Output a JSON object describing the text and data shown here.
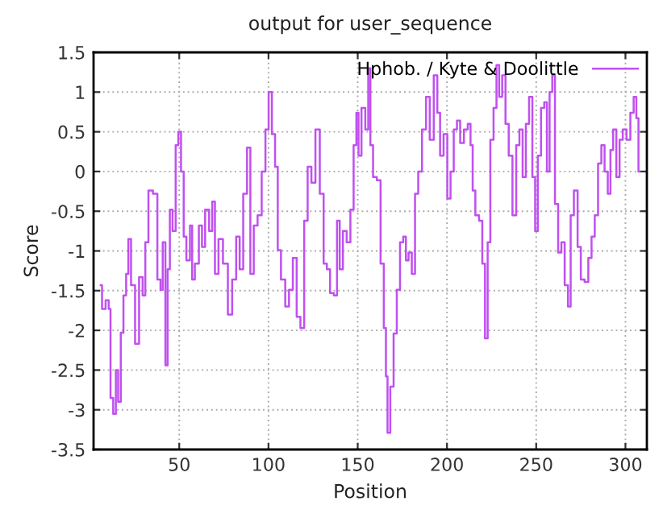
{
  "chart_data": {
    "type": "step",
    "title": "output for user_sequence",
    "xlabel": "Position",
    "ylabel": "Score",
    "x": [
      6,
      7.5,
      10,
      11,
      12,
      14,
      15,
      16.5,
      18,
      19.5,
      21,
      22,
      24,
      26.5,
      28.5,
      30.5,
      31.5,
      34,
      36.5,
      39,
      40,
      41.5,
      43,
      44,
      45.5,
      47,
      49,
      50,
      52,
      53,
      55,
      57,
      57.5,
      60,
      62,
      63.5,
      65.5,
      68,
      69,
      71,
      73,
      76,
      78.5,
      80.8,
      83,
      84.7,
      87,
      89,
      90.7,
      92.8,
      95,
      97.4,
      99.2,
      101,
      102.8,
      104.6,
      105.8,
      108.2,
      110.6,
      112.4,
      114.9,
      116.7,
      119.1,
      120.9,
      123,
      125.1,
      127.5,
      130,
      131.8,
      133.6,
      135.4,
      137.8,
      139,
      140.8,
      142.6,
      145,
      146.8,
      148.6,
      149.9,
      151,
      153.2,
      155.3,
      156.5,
      157.7,
      159.5,
      161.9,
      163.7,
      165.5,
      166.1,
      167.3,
      169.2,
      171,
      172.8,
      174.6,
      176.4,
      177.6,
      179.4,
      181.2,
      183,
      184.8,
      187.2,
      189.3,
      191.4,
      193.8,
      195.4,
      196.9,
      199.3,
      201.1,
      202.9,
      204.7,
      206.5,
      208.3,
      210.7,
      212.6,
      213.8,
      215,
      216.8,
      219.2,
      220.4,
      222.2,
      223.4,
      225.2,
      227,
      228.5,
      230,
      231.9,
      233.7,
      235.5,
      237.9,
      239.7,
      241.5,
      243.3,
      245.1,
      246.9,
      248.8,
      250,
      251.8,
      253.6,
      255.4,
      256.6,
      258.4,
      259.6,
      261.4,
      263.2,
      265,
      266.9,
      268.7,
      269.9,
      272.3,
      274.1,
      275.9,
      278.3,
      280.1,
      281.9,
      283.7,
      285.6,
      287.4,
      289.2,
      291,
      292.2,
      294,
      295.8,
      297.6,
      299.4,
      301.8,
      303.7,
      305.5,
      306.7,
      307.9
    ],
    "series": [
      {
        "name": "Hphob. / Kyte & Doolittle",
        "color": "#c050f0",
        "values": [
          -1.43,
          -1.73,
          -1.62,
          -1.73,
          -2.85,
          -3.05,
          -2.5,
          -2.9,
          -2.03,
          -1.56,
          -1.29,
          -0.85,
          -1.43,
          -2.17,
          -1.33,
          -1.56,
          -0.89,
          -0.24,
          -0.28,
          -1.36,
          -1.49,
          -0.89,
          -2.44,
          -1.23,
          -0.48,
          -0.75,
          0.33,
          0.5,
          0.0,
          -0.82,
          -1.12,
          -0.68,
          -1.36,
          -1.16,
          -0.68,
          -0.95,
          -0.48,
          -0.75,
          -0.38,
          -1.29,
          -0.85,
          -1.16,
          -1.8,
          -1.36,
          -0.82,
          -1.23,
          -0.28,
          0.3,
          -1.29,
          -0.68,
          -0.55,
          0.0,
          0.53,
          1.0,
          0.47,
          0.06,
          -0.99,
          -1.36,
          -1.7,
          -1.49,
          -1.09,
          -1.83,
          -1.97,
          -0.62,
          0.06,
          -0.14,
          0.53,
          -0.28,
          -1.16,
          -1.23,
          -1.53,
          -1.56,
          -0.62,
          -1.23,
          -0.75,
          -0.89,
          -0.48,
          0.33,
          0.74,
          0.2,
          0.8,
          0.53,
          1.3,
          0.33,
          -0.07,
          -0.11,
          -1.16,
          -1.97,
          -2.58,
          -3.29,
          -2.71,
          -2.04,
          -1.49,
          -0.89,
          -0.82,
          -1.12,
          -1.02,
          -1.29,
          -0.28,
          0.0,
          0.53,
          0.94,
          0.4,
          1.21,
          0.74,
          0.2,
          0.47,
          -0.34,
          0.0,
          0.53,
          0.64,
          0.36,
          0.53,
          0.6,
          0.33,
          -0.24,
          -0.55,
          -0.62,
          -1.16,
          -2.1,
          -0.89,
          0.4,
          0.8,
          1.34,
          0.94,
          1.21,
          0.6,
          0.2,
          -0.55,
          0.33,
          0.53,
          -0.07,
          0.6,
          0.94,
          -0.07,
          -0.75,
          0.2,
          0.8,
          0.87,
          0.0,
          1.0,
          1.21,
          -0.41,
          -1.02,
          -0.89,
          -1.43,
          -1.7,
          -0.55,
          -0.24,
          -0.95,
          -1.36,
          -1.39,
          -1.09,
          -0.82,
          -0.55,
          0.1,
          0.33,
          0.0,
          -0.28,
          0.27,
          0.53,
          -0.07,
          0.4,
          0.53,
          0.4,
          0.74,
          0.94,
          0.67,
          0.0
        ]
      }
    ],
    "xlim": [
      2,
      312
    ],
    "ylim": [
      -3.5,
      1.5
    ],
    "xticks": [
      50,
      100,
      150,
      200,
      250,
      300
    ],
    "yticks": [
      -3.5,
      -3,
      -2.5,
      -2,
      -1.5,
      -1,
      -0.5,
      0,
      0.5,
      1,
      1.5
    ],
    "grid": true,
    "legend": "top right"
  }
}
